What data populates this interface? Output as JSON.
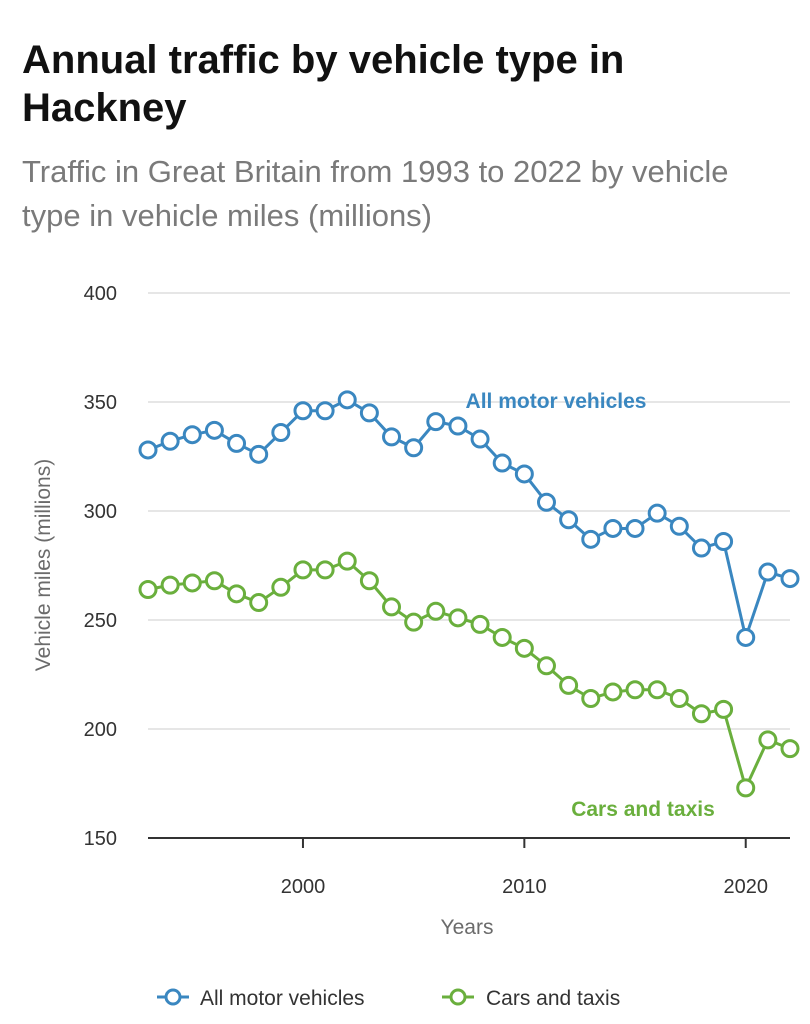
{
  "title": "Annual traffic by vehicle type in Hackney",
  "subtitle": "Traffic in Great Britain from 1993 to 2022 by vehicle type in vehicle miles (millions)",
  "colors": {
    "all_motor": "#3a87c0",
    "cars_taxis": "#6aaf3d",
    "grid": "#e6e6e6",
    "axis": "#333333"
  },
  "chart_data": {
    "type": "line",
    "xlabel": "Years",
    "ylabel": "Vehicle miles (millions)",
    "xlim": [
      1993,
      2022
    ],
    "ylim": [
      150,
      400
    ],
    "x_ticks": [
      "2000",
      "2010",
      "2020"
    ],
    "y_ticks": [
      "150",
      "200",
      "250",
      "300",
      "350",
      "400"
    ],
    "x": [
      1993,
      1994,
      1995,
      1996,
      1997,
      1998,
      1999,
      2000,
      2001,
      2002,
      2003,
      2004,
      2005,
      2006,
      2007,
      2008,
      2009,
      2010,
      2011,
      2012,
      2013,
      2014,
      2015,
      2016,
      2017,
      2018,
      2019,
      2020,
      2021,
      2022
    ],
    "series": [
      {
        "name": "All motor vehicles",
        "values": [
          328,
          332,
          335,
          337,
          331,
          326,
          336,
          346,
          346,
          351,
          345,
          334,
          329,
          341,
          339,
          333,
          322,
          317,
          304,
          296,
          287,
          292,
          292,
          299,
          293,
          283,
          286,
          242,
          272,
          269
        ]
      },
      {
        "name": "Cars and taxis",
        "values": [
          264,
          266,
          267,
          268,
          262,
          258,
          265,
          273,
          273,
          277,
          268,
          256,
          249,
          254,
          251,
          248,
          242,
          237,
          229,
          220,
          214,
          217,
          218,
          218,
          214,
          207,
          209,
          173,
          195,
          191
        ]
      }
    ],
    "legend": [
      "All motor vehicles",
      "Cars and taxis"
    ]
  }
}
